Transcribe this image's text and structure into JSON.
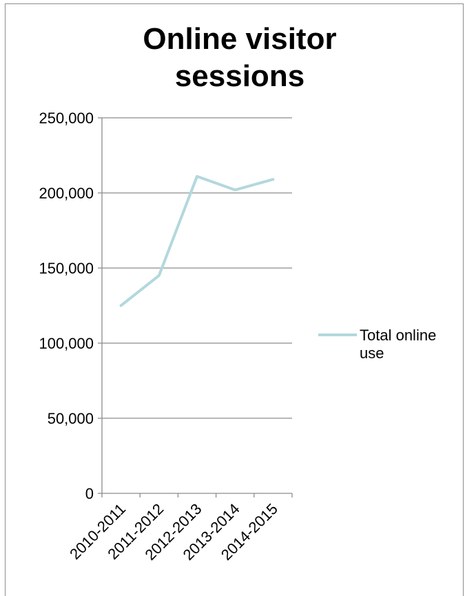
{
  "chart_data": {
    "type": "line",
    "title": "Online visitor sessions",
    "categories": [
      "2010-2011",
      "2011-2012",
      "2012-2013",
      "2013-2014",
      "2014-2015"
    ],
    "series": [
      {
        "name": "Total online use",
        "values": [
          125000,
          145000,
          211000,
          202000,
          209000
        ],
        "color": "#b2d8dd"
      }
    ],
    "y_ticks": [
      "0",
      "50,000",
      "100,000",
      "150,000",
      "200,000",
      "250,000"
    ],
    "ylim": [
      0,
      250000
    ],
    "grid": true,
    "legend_position": "right",
    "gridline_color": "#8c8c8c",
    "axis_color": "#8c8c8c"
  }
}
